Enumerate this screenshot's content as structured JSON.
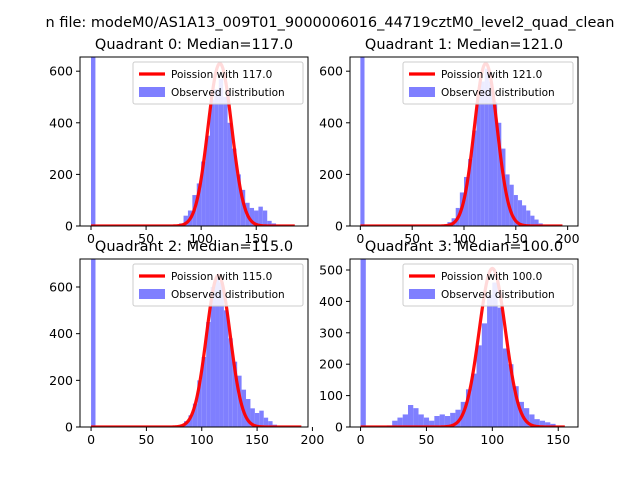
{
  "suptitle": "n file: modeM0/AS1A13_009T01_9000006016_44719cztM0_level2_quad_clean",
  "colors": {
    "poisson_line": "#ff0000",
    "histogram": "#7f7fff",
    "axes": "#000000"
  },
  "chart_data": [
    {
      "type": "bar",
      "title": "Quadrant 0: Median=117.0",
      "xlim": [
        -10,
        197
      ],
      "ylim": [
        0,
        655
      ],
      "xticks": [
        0,
        50,
        100,
        150
      ],
      "yticks": [
        0,
        200,
        400,
        600
      ],
      "bin_width": 4,
      "median": 117,
      "series": [
        {
          "name": "Poission with 117.0",
          "kind": "line",
          "lambda": 117,
          "peak": 630,
          "x_range": [
            0,
            185
          ]
        },
        {
          "name": "Observed distribution",
          "kind": "histogram",
          "bins": [
            [
              0,
              655
            ],
            [
              80,
              10
            ],
            [
              84,
              40
            ],
            [
              88,
              60
            ],
            [
              92,
              120
            ],
            [
              96,
              165
            ],
            [
              100,
              250
            ],
            [
              104,
              350
            ],
            [
              108,
              490
            ],
            [
              112,
              530
            ],
            [
              116,
              570
            ],
            [
              120,
              500
            ],
            [
              124,
              400
            ],
            [
              128,
              300
            ],
            [
              132,
              200
            ],
            [
              136,
              140
            ],
            [
              140,
              90
            ],
            [
              144,
              70
            ],
            [
              148,
              60
            ],
            [
              152,
              75
            ],
            [
              156,
              60
            ],
            [
              160,
              20
            ],
            [
              164,
              10
            ],
            [
              168,
              5
            ]
          ]
        }
      ]
    },
    {
      "type": "bar",
      "title": "Quadrant 1: Median=121.0",
      "xlim": [
        -10,
        210
      ],
      "ylim": [
        0,
        655
      ],
      "xticks": [
        0,
        50,
        100,
        150,
        200
      ],
      "yticks": [
        0,
        200,
        400,
        600
      ],
      "bin_width": 4,
      "median": 121,
      "series": [
        {
          "name": "Poission with 121.0",
          "kind": "line",
          "lambda": 121,
          "peak": 630,
          "x_range": [
            0,
            195
          ]
        },
        {
          "name": "Observed distribution",
          "kind": "histogram",
          "bins": [
            [
              0,
              655
            ],
            [
              80,
              5
            ],
            [
              84,
              15
            ],
            [
              88,
              30
            ],
            [
              92,
              70
            ],
            [
              96,
              130
            ],
            [
              100,
              190
            ],
            [
              104,
              260
            ],
            [
              108,
              370
            ],
            [
              112,
              500
            ],
            [
              116,
              560
            ],
            [
              120,
              610
            ],
            [
              124,
              560
            ],
            [
              128,
              480
            ],
            [
              132,
              400
            ],
            [
              136,
              300
            ],
            [
              140,
              200
            ],
            [
              144,
              160
            ],
            [
              148,
              120
            ],
            [
              152,
              100
            ],
            [
              156,
              80
            ],
            [
              160,
              60
            ],
            [
              164,
              40
            ],
            [
              168,
              25
            ],
            [
              172,
              10
            ]
          ]
        }
      ]
    },
    {
      "type": "bar",
      "title": "Quadrant 2: Median=115.0",
      "xlim": [
        -10,
        196
      ],
      "ylim": [
        0,
        720
      ],
      "xticks": [
        0,
        50,
        100,
        150,
        200
      ],
      "yticks": [
        0,
        200,
        400,
        600
      ],
      "bin_width": 4,
      "median": 115,
      "series": [
        {
          "name": "Poission with 115.0",
          "kind": "line",
          "lambda": 115,
          "peak": 650,
          "x_range": [
            0,
            190
          ]
        },
        {
          "name": "Observed distribution",
          "kind": "histogram",
          "bins": [
            [
              0,
              720
            ],
            [
              80,
              10
            ],
            [
              84,
              25
            ],
            [
              88,
              50
            ],
            [
              92,
              100
            ],
            [
              96,
              200
            ],
            [
              100,
              300
            ],
            [
              104,
              450
            ],
            [
              108,
              600
            ],
            [
              112,
              640
            ],
            [
              116,
              620
            ],
            [
              120,
              500
            ],
            [
              124,
              380
            ],
            [
              128,
              280
            ],
            [
              132,
              220
            ],
            [
              136,
              160
            ],
            [
              140,
              120
            ],
            [
              144,
              80
            ],
            [
              148,
              60
            ],
            [
              152,
              70
            ],
            [
              156,
              40
            ],
            [
              160,
              25
            ],
            [
              164,
              10
            ]
          ]
        }
      ]
    },
    {
      "type": "bar",
      "title": "Quadrant 3: Median=100.0",
      "xlim": [
        -8,
        165
      ],
      "ylim": [
        0,
        535
      ],
      "xticks": [
        0,
        50,
        100,
        150
      ],
      "yticks": [
        0,
        100,
        200,
        300,
        400,
        500
      ],
      "bin_width": 4,
      "median": 100,
      "series": [
        {
          "name": "Poission with 100.0",
          "kind": "line",
          "lambda": 100,
          "peak": 505,
          "x_range": [
            0,
            155
          ]
        },
        {
          "name": "Observed distribution",
          "kind": "histogram",
          "bins": [
            [
              0,
              535
            ],
            [
              20,
              5
            ],
            [
              24,
              20
            ],
            [
              28,
              30
            ],
            [
              32,
              40
            ],
            [
              36,
              70
            ],
            [
              40,
              60
            ],
            [
              44,
              40
            ],
            [
              48,
              30
            ],
            [
              52,
              20
            ],
            [
              56,
              35
            ],
            [
              60,
              40
            ],
            [
              64,
              35
            ],
            [
              68,
              45
            ],
            [
              72,
              55
            ],
            [
              76,
              80
            ],
            [
              80,
              120
            ],
            [
              84,
              170
            ],
            [
              88,
              260
            ],
            [
              92,
              330
            ],
            [
              96,
              420
            ],
            [
              100,
              460
            ],
            [
              104,
              380
            ],
            [
              108,
              250
            ],
            [
              112,
              200
            ],
            [
              116,
              130
            ],
            [
              120,
              80
            ],
            [
              124,
              60
            ],
            [
              128,
              40
            ],
            [
              132,
              25
            ],
            [
              136,
              20
            ],
            [
              140,
              15
            ],
            [
              144,
              10
            ]
          ]
        }
      ]
    }
  ]
}
